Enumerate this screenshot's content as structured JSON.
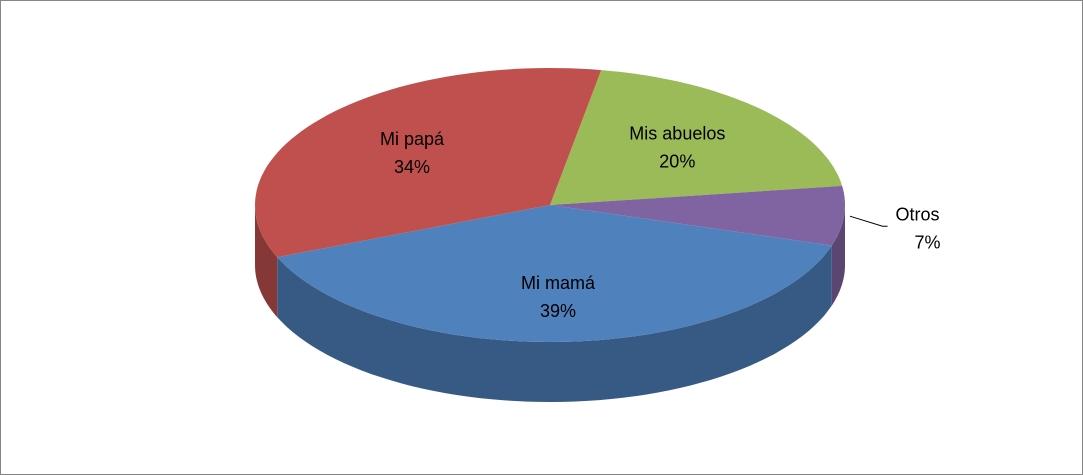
{
  "chart_data": {
    "type": "pie",
    "categories": [
      "Mis abuelos",
      "Otros",
      "Mi mamá",
      "Mi papá"
    ],
    "values": [
      20,
      7,
      39,
      34
    ],
    "value_labels": [
      "20%",
      "7%",
      "39%",
      "34%"
    ],
    "colors": [
      "#9bbb59",
      "#8064a2",
      "#4f81bd",
      "#c0504d"
    ]
  }
}
